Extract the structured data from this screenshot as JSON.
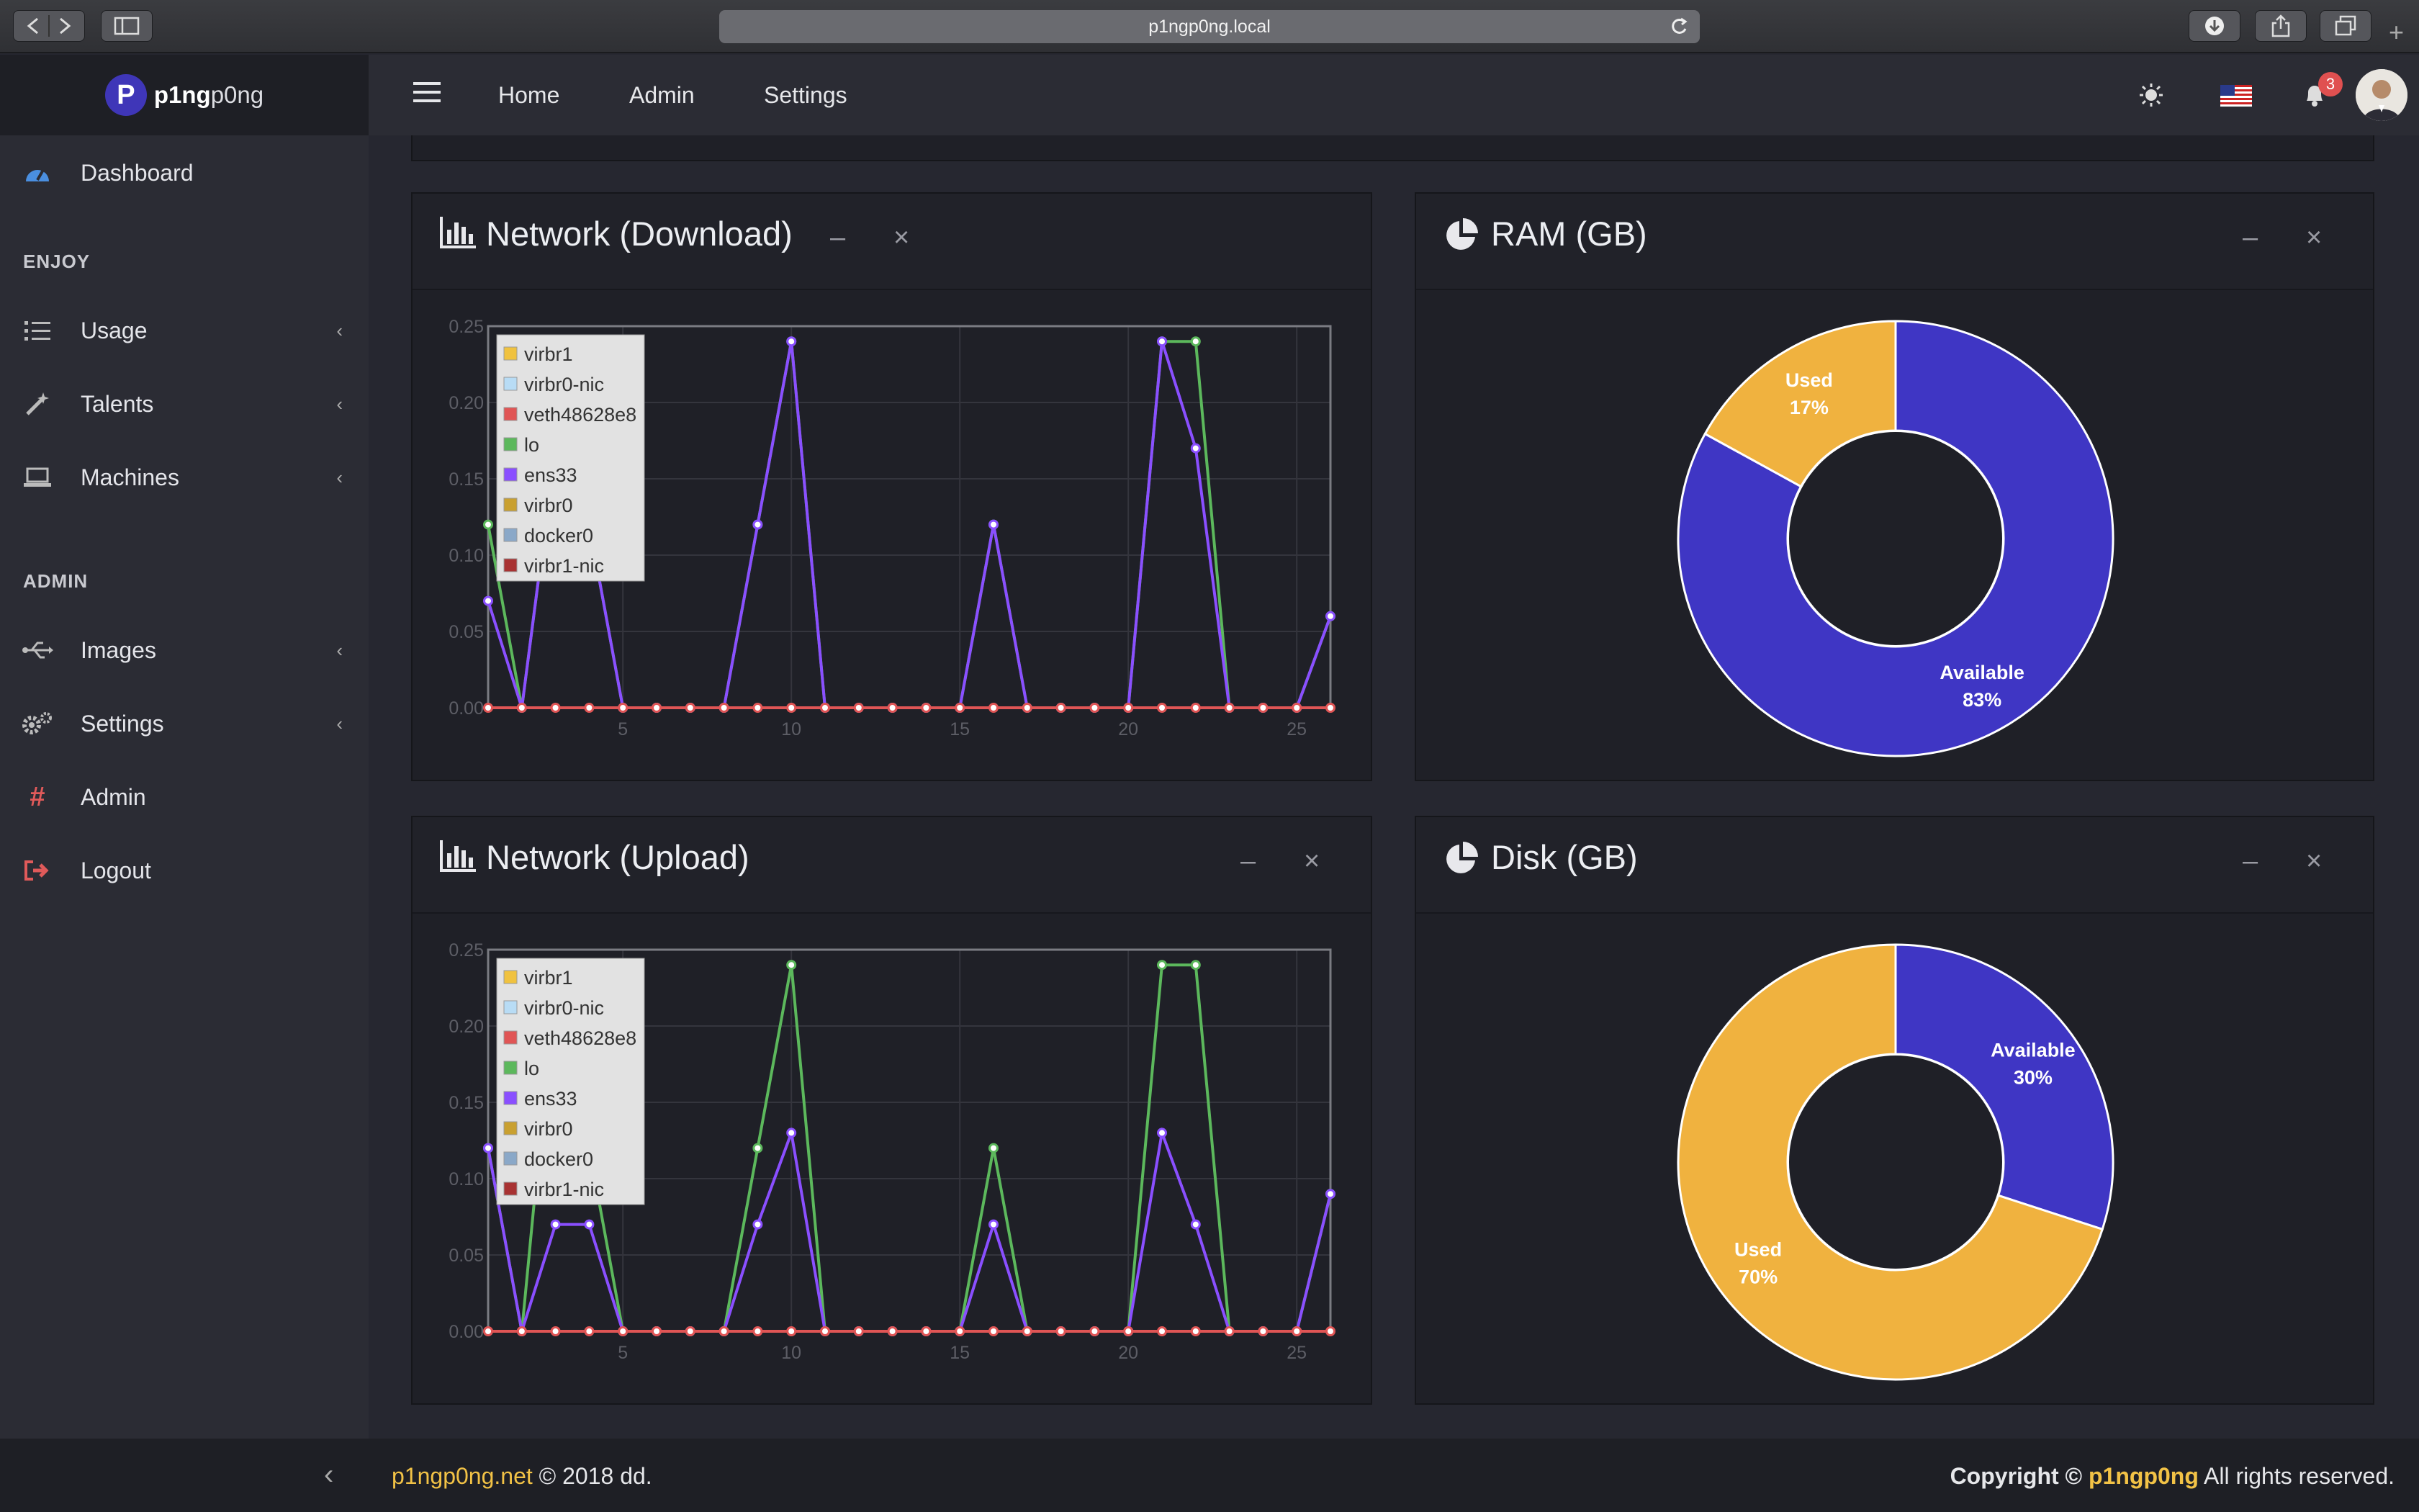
{
  "browser": {
    "url": "p1ngp0ng.local"
  },
  "brand": {
    "logo_letter": "P",
    "name_bold": "p1ng",
    "name_rest": "p0ng"
  },
  "header": {
    "nav": [
      "Home",
      "Admin",
      "Settings"
    ],
    "notification_count": "3"
  },
  "sidebar": {
    "dashboard": "Dashboard",
    "section_enjoy": "ENJOY",
    "enjoy_items": [
      "Usage",
      "Talents",
      "Machines"
    ],
    "section_admin": "ADMIN",
    "admin_items": [
      "Images",
      "Settings",
      "Admin",
      "Logout"
    ]
  },
  "panels": {
    "download_title": "Network (Download)",
    "upload_title": "Network (Upload)",
    "ram_title": "RAM (GB)",
    "disk_title": "Disk (GB)",
    "minimize": "–",
    "close": "×"
  },
  "footer": {
    "site": "p1ngp0ng.net",
    "year_text": " © 2018 dd.",
    "copyright_prefix": "Copyright © ",
    "brand": "p1ngp0ng",
    "suffix": " All rights reserved."
  },
  "colors": {
    "ram_used": "#f0b23f",
    "ram_available": "#3f36c4",
    "accent_gold": "#f2c246"
  },
  "chart_data": [
    {
      "type": "line",
      "title": "Network (Download)",
      "x": [
        1,
        2,
        3,
        4,
        5,
        6,
        7,
        8,
        9,
        10,
        11,
        12,
        13,
        14,
        15,
        16,
        17,
        18,
        19,
        20,
        21,
        22,
        23,
        24,
        25,
        26
      ],
      "xticks": [
        5,
        10,
        15,
        20,
        25
      ],
      "yticks": [
        "0.00",
        "0.05",
        "0.10",
        "0.15",
        "0.20",
        "0.25"
      ],
      "ylim": [
        0,
        0.25
      ],
      "legend": [
        "virbr1",
        "virbr0-nic",
        "veth48628e8",
        "lo",
        "ens33",
        "virbr0",
        "docker0",
        "virbr1-nic"
      ],
      "legend_colors": [
        "#f0c23f",
        "#b8dcf5",
        "#e05555",
        "#5cb85c",
        "#8a4fff",
        "#c9a030",
        "#8aa8c8",
        "#a83232"
      ],
      "series": [
        {
          "name": "lo",
          "color": "#5cb85c",
          "values": [
            0.12,
            0,
            0.17,
            0.12,
            0,
            0,
            0,
            0,
            0.12,
            0.24,
            0,
            0,
            0,
            0,
            0,
            0.12,
            0,
            0,
            0,
            0,
            0.24,
            0.24,
            0,
            0,
            0,
            0.06
          ]
        },
        {
          "name": "ens33",
          "color": "#8a4fff",
          "values": [
            0.07,
            0,
            0.17,
            0.12,
            0,
            0,
            0,
            0,
            0.12,
            0.24,
            0,
            0,
            0,
            0,
            0,
            0.12,
            0,
            0,
            0,
            0,
            0.24,
            0.17,
            0,
            0,
            0,
            0.06
          ]
        },
        {
          "name": "veth48628e8",
          "color": "#e05555",
          "values": [
            0,
            0,
            0,
            0,
            0,
            0,
            0,
            0,
            0,
            0,
            0,
            0,
            0,
            0,
            0,
            0,
            0,
            0,
            0,
            0,
            0,
            0,
            0,
            0,
            0,
            0
          ]
        }
      ]
    },
    {
      "type": "line",
      "title": "Network (Upload)",
      "x": [
        1,
        2,
        3,
        4,
        5,
        6,
        7,
        8,
        9,
        10,
        11,
        12,
        13,
        14,
        15,
        16,
        17,
        18,
        19,
        20,
        21,
        22,
        23,
        24,
        25,
        26
      ],
      "xticks": [
        5,
        10,
        15,
        20,
        25
      ],
      "yticks": [
        "0.00",
        "0.05",
        "0.10",
        "0.15",
        "0.20",
        "0.25"
      ],
      "ylim": [
        0,
        0.25
      ],
      "legend": [
        "virbr1",
        "virbr0-nic",
        "veth48628e8",
        "lo",
        "ens33",
        "virbr0",
        "docker0",
        "virbr1-nic"
      ],
      "legend_colors": [
        "#f0c23f",
        "#b8dcf5",
        "#e05555",
        "#5cb85c",
        "#8a4fff",
        "#c9a030",
        "#8aa8c8",
        "#a83232"
      ],
      "series": [
        {
          "name": "lo",
          "color": "#5cb85c",
          "values": [
            0.12,
            0,
            0.23,
            0.12,
            0,
            0,
            0,
            0,
            0.12,
            0.24,
            0,
            0,
            0,
            0,
            0,
            0.12,
            0,
            0,
            0,
            0,
            0.24,
            0.24,
            0,
            0,
            0,
            0.09
          ]
        },
        {
          "name": "ens33",
          "color": "#8a4fff",
          "values": [
            0.12,
            0,
            0.07,
            0.07,
            0,
            0,
            0,
            0,
            0.07,
            0.13,
            0,
            0,
            0,
            0,
            0,
            0.07,
            0,
            0,
            0,
            0,
            0.13,
            0.07,
            0,
            0,
            0,
            0.09
          ]
        },
        {
          "name": "veth48628e8",
          "color": "#e05555",
          "values": [
            0,
            0,
            0,
            0,
            0,
            0,
            0,
            0,
            0,
            0,
            0,
            0,
            0,
            0,
            0,
            0,
            0,
            0,
            0,
            0,
            0,
            0,
            0,
            0,
            0,
            0
          ]
        }
      ]
    },
    {
      "type": "pie",
      "title": "RAM (GB)",
      "slices": [
        {
          "label": "Available",
          "pct_text": "83%",
          "value": 83,
          "color": "#3f36c4"
        },
        {
          "label": "Used",
          "pct_text": "17%",
          "value": 17,
          "color": "#f0b23f"
        }
      ]
    },
    {
      "type": "pie",
      "title": "Disk (GB)",
      "slices": [
        {
          "label": "Available",
          "pct_text": "30%",
          "value": 30,
          "color": "#3f36c4"
        },
        {
          "label": "Used",
          "pct_text": "70%",
          "value": 70,
          "color": "#f0b23f"
        }
      ]
    }
  ]
}
